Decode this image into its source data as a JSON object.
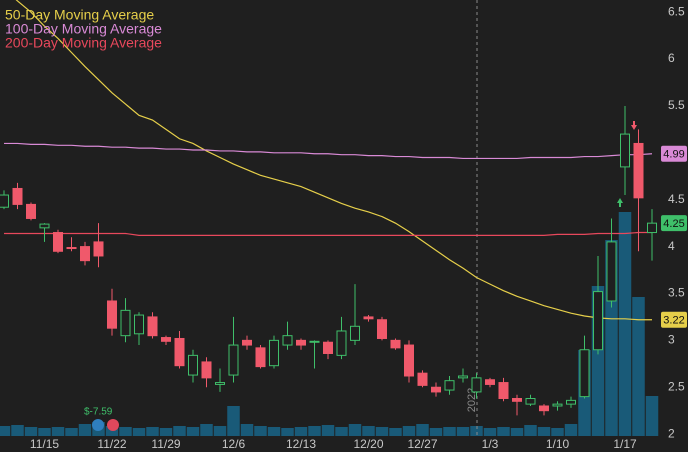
{
  "chart_data": {
    "type": "candlestick",
    "categories": [
      null,
      null,
      null,
      "11/15",
      null,
      null,
      null,
      null,
      "11/22",
      null,
      null,
      null,
      "11/29",
      null,
      null,
      null,
      null,
      "12/6",
      null,
      null,
      null,
      null,
      "12/13",
      null,
      null,
      null,
      null,
      "12/20",
      null,
      null,
      null,
      "12/27",
      null,
      null,
      null,
      null,
      "1/3",
      null,
      null,
      null,
      null,
      "1/10",
      null,
      null,
      null,
      null,
      "1/17",
      null,
      null
    ],
    "open": [
      4.42,
      4.62,
      4.45,
      4.2,
      4.15,
      3.99,
      4.0,
      4.05,
      3.42,
      3.05,
      3.07,
      3.25,
      3.03,
      3.02,
      2.63,
      2.77,
      2.53,
      2.63,
      3.0,
      2.92,
      2.73,
      2.95,
      3.0,
      2.98,
      2.98,
      2.84,
      3.0,
      3.25,
      3.22,
      3.0,
      2.95,
      2.65,
      2.5,
      2.47,
      2.6,
      2.45,
      2.58,
      2.55,
      2.38,
      2.32,
      2.3,
      2.3,
      2.32,
      2.4,
      2.9,
      3.42,
      4.85,
      5.1,
      4.15
    ],
    "high": [
      4.6,
      4.68,
      4.47,
      4.25,
      4.18,
      4.1,
      4.05,
      4.25,
      3.55,
      3.45,
      3.3,
      3.3,
      3.05,
      3.1,
      2.9,
      2.82,
      2.7,
      3.25,
      3.05,
      2.95,
      3.05,
      3.2,
      3.02,
      3.0,
      3.0,
      3.25,
      3.6,
      3.27,
      3.25,
      3.02,
      3.0,
      2.68,
      2.55,
      2.62,
      2.7,
      2.65,
      2.6,
      2.6,
      2.42,
      2.42,
      2.32,
      2.35,
      2.4,
      3.05,
      3.9,
      4.3,
      5.5,
      5.25,
      4.4
    ],
    "low": [
      4.4,
      4.4,
      4.28,
      4.05,
      3.93,
      3.95,
      3.8,
      3.78,
      3.05,
      2.98,
      2.95,
      3.02,
      2.95,
      2.7,
      2.55,
      2.5,
      2.45,
      2.55,
      2.9,
      2.7,
      2.7,
      2.9,
      2.9,
      2.7,
      2.8,
      2.8,
      2.95,
      3.2,
      3.0,
      2.9,
      2.55,
      2.5,
      2.4,
      2.42,
      2.55,
      2.38,
      2.5,
      2.35,
      2.2,
      2.3,
      2.2,
      2.25,
      2.28,
      2.38,
      2.85,
      3.35,
      4.55,
      3.95,
      3.85
    ],
    "close": [
      4.55,
      4.45,
      4.3,
      4.24,
      3.95,
      3.98,
      3.85,
      3.9,
      3.13,
      3.32,
      3.27,
      3.05,
      2.99,
      2.73,
      2.84,
      2.6,
      2.55,
      2.95,
      2.95,
      2.72,
      3.0,
      3.05,
      2.95,
      2.99,
      2.86,
      3.1,
      3.15,
      3.23,
      3.02,
      2.92,
      2.62,
      2.52,
      2.45,
      2.57,
      2.62,
      2.6,
      2.53,
      2.38,
      2.35,
      2.38,
      2.25,
      2.32,
      2.36,
      2.9,
      3.52,
      4.05,
      5.2,
      4.52,
      4.25
    ],
    "up_color": "#3fbf6a",
    "down_color": "#f0596b",
    "volume": [
      10,
      11,
      9,
      8,
      9,
      8,
      12,
      14,
      10,
      9,
      8,
      9,
      8,
      10,
      9,
      12,
      10,
      30,
      12,
      10,
      9,
      8,
      9,
      10,
      11,
      9,
      12,
      10,
      9,
      8,
      10,
      12,
      8,
      9,
      9,
      10,
      8,
      9,
      8,
      11,
      9,
      8,
      12,
      86,
      150,
      196,
      224,
      139,
      40
    ],
    "volume_color": "#195a78",
    "volume_ylim": [
      0,
      250
    ],
    "moving_averages": [
      {
        "name": "50-Day Moving Average",
        "color": "#e6cf4a",
        "values": [
          6.75,
          6.62,
          6.5,
          6.35,
          6.22,
          6.07,
          5.92,
          5.78,
          5.64,
          5.52,
          5.4,
          5.35,
          5.25,
          5.15,
          5.1,
          5.02,
          4.95,
          4.88,
          4.82,
          4.76,
          4.72,
          4.68,
          4.64,
          4.58,
          4.52,
          4.46,
          4.41,
          4.37,
          4.32,
          4.25,
          4.16,
          4.06,
          3.96,
          3.86,
          3.77,
          3.67,
          3.6,
          3.53,
          3.47,
          3.42,
          3.37,
          3.33,
          3.29,
          3.26,
          3.24,
          3.23,
          3.23,
          3.22,
          3.22
        ]
      },
      {
        "name": "100-Day Moving Average",
        "color": "#d98ad6",
        "values": [
          5.1,
          5.1,
          5.09,
          5.09,
          5.08,
          5.08,
          5.07,
          5.07,
          5.06,
          5.06,
          5.05,
          5.05,
          5.04,
          5.04,
          5.03,
          5.03,
          5.02,
          5.02,
          5.01,
          5.01,
          5.0,
          5.0,
          5.0,
          4.99,
          4.99,
          4.98,
          4.98,
          4.97,
          4.97,
          4.96,
          4.96,
          4.95,
          4.95,
          4.95,
          4.94,
          4.94,
          4.94,
          4.94,
          4.94,
          4.95,
          4.95,
          4.95,
          4.95,
          4.96,
          4.96,
          4.97,
          4.98,
          4.98,
          4.99
        ]
      },
      {
        "name": "200-Day Moving Average",
        "color": "#e8485c",
        "values": [
          4.14,
          4.14,
          4.14,
          4.14,
          4.14,
          4.14,
          4.14,
          4.14,
          4.14,
          4.14,
          4.12,
          4.12,
          4.12,
          4.12,
          4.12,
          4.12,
          4.12,
          4.12,
          4.12,
          4.12,
          4.12,
          4.12,
          4.12,
          4.12,
          4.12,
          4.12,
          4.12,
          4.12,
          4.12,
          4.12,
          4.12,
          4.12,
          4.12,
          4.12,
          4.12,
          4.12,
          4.12,
          4.12,
          4.12,
          4.12,
          4.12,
          4.13,
          4.13,
          4.13,
          4.14,
          4.14,
          4.14,
          4.15,
          4.15
        ]
      }
    ],
    "ylim": [
      1.98,
      6.63
    ],
    "yticks": [
      2,
      2.5,
      3,
      3.5,
      4,
      4.5,
      5,
      5.5,
      6,
      6.5
    ],
    "grid": false,
    "annotations": {
      "earnings": "$-7.59",
      "year": "2022"
    }
  }
}
